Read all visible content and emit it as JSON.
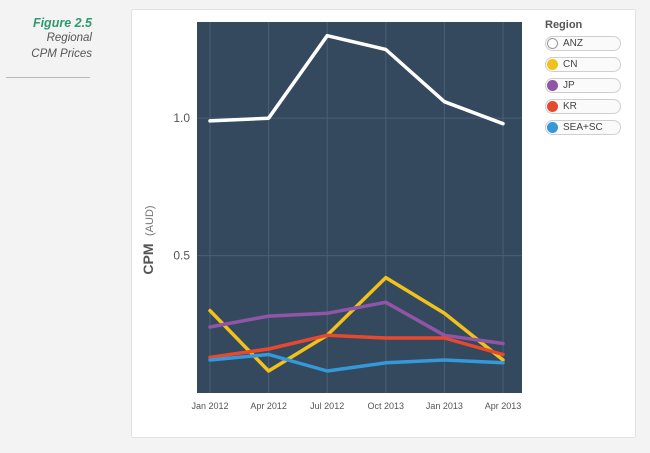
{
  "caption": {
    "figure": "Figure 2.5",
    "title_line1": "Regional",
    "title_line2": "CPM Prices"
  },
  "colors": {
    "plot_background": "#34495e",
    "grid": "#4a5f74",
    "ANZ": "#ffffff",
    "CN": "#f2c21a",
    "JP": "#9055a6",
    "KR": "#e8492e",
    "SEA+SC": "#3498db"
  },
  "chart_data": {
    "type": "line",
    "title": "",
    "xlabel": "",
    "ylabel_main": "CPM",
    "ylabel_unit": "(AUD)",
    "ylim": [
      0.0,
      1.35
    ],
    "yticks": [
      "0.5",
      "1.0"
    ],
    "ytick_values": [
      0.5,
      1.0
    ],
    "categories": [
      "Jan 2012",
      "Apr 2012",
      "Jul 2012",
      "Oct 2013",
      "Jan 2013",
      "Apr 2013"
    ],
    "legend_title": "Region",
    "series": [
      {
        "name": "ANZ",
        "values": [
          0.99,
          1.0,
          1.3,
          1.25,
          1.06,
          0.98
        ]
      },
      {
        "name": "CN",
        "values": [
          0.3,
          0.08,
          0.21,
          0.42,
          0.29,
          0.12
        ]
      },
      {
        "name": "JP",
        "values": [
          0.24,
          0.28,
          0.29,
          0.33,
          0.21,
          0.18
        ]
      },
      {
        "name": "KR",
        "values": [
          0.13,
          0.16,
          0.21,
          0.2,
          0.2,
          0.14
        ]
      },
      {
        "name": "SEA+SC",
        "values": [
          0.12,
          0.14,
          0.08,
          0.11,
          0.12,
          0.11
        ]
      }
    ]
  }
}
